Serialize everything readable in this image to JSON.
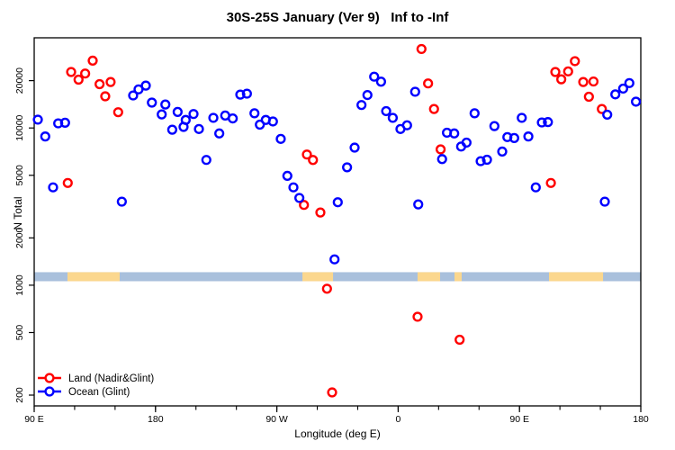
{
  "title": "30S-25S January (Ver 9)   Inf to -Inf",
  "y_axis": {
    "label": "N Total",
    "scale": "log",
    "tick_values": [
      200,
      500,
      1000,
      2000,
      5000,
      10000,
      20000
    ],
    "tick_labels": [
      "200",
      "500",
      "1000",
      "2000",
      "5000",
      "10000",
      "20000"
    ]
  },
  "x_axis": {
    "label": "Longitude (deg E)",
    "range_deg": [
      90,
      540
    ],
    "minor_tick_step_deg": 30,
    "major_ticks": [
      {
        "lon": 90,
        "label": "90 E"
      },
      {
        "lon": 180,
        "label": "180"
      },
      {
        "lon": 270,
        "label": "90 W"
      },
      {
        "lon": 360,
        "label": "0"
      },
      {
        "lon": 450,
        "label": "90 E"
      },
      {
        "lon": 540,
        "label": "180"
      }
    ]
  },
  "legend": {
    "items": [
      {
        "label": "Land (Nadir&Glint)",
        "color": "#ff0000"
      },
      {
        "label": "Ocean (Glint)",
        "color": "#0000ff"
      }
    ]
  },
  "surface_band": {
    "description": "land/ocean strip drawn across the plot near N=1100",
    "ocean_color": "#a9c0dc",
    "land_color": "#fbd78e",
    "n_range": [
      1060,
      1210
    ],
    "land_segments_lon": [
      [
        114.7,
        153.4
      ],
      [
        289.0,
        311.7
      ],
      [
        374.4,
        391.1
      ],
      [
        401.8,
        407.1
      ],
      [
        471.9,
        512.0
      ]
    ]
  },
  "chart_data": {
    "type": "scatter",
    "title": "30S-25S January (Ver 9)   Inf to -Inf",
    "xlabel": "Longitude (deg E)",
    "ylabel": "N Total",
    "xlim": [
      90,
      540
    ],
    "ylim": [
      170,
      37000
    ],
    "yscale": "log",
    "grid": false,
    "legend_position": "bottom-left",
    "marker": "open-circle",
    "series": [
      {
        "name": "Land (Nadir&Glint)",
        "color": "#ff0000",
        "points": [
          [
            117.4,
            22700
          ],
          [
            122.9,
            20300
          ],
          [
            127.8,
            22200
          ],
          [
            133.4,
            26800
          ],
          [
            138.5,
            19000
          ],
          [
            142.7,
            15900
          ],
          [
            146.7,
            19600
          ],
          [
            152.3,
            12600
          ],
          [
            114.9,
            4470
          ],
          [
            290.1,
            3240
          ],
          [
            292.3,
            6780
          ],
          [
            296.8,
            6260
          ],
          [
            302.3,
            2900
          ],
          [
            307.2,
            950
          ],
          [
            311.0,
            208
          ],
          [
            374.4,
            630
          ],
          [
            377.3,
            31800
          ],
          [
            382.2,
            19200
          ],
          [
            386.6,
            13200
          ],
          [
            391.5,
            7310
          ],
          [
            405.6,
            450
          ],
          [
            473.3,
            4470
          ],
          [
            476.6,
            22700
          ],
          [
            481.0,
            20400
          ],
          [
            486.1,
            22900
          ],
          [
            491.1,
            26600
          ],
          [
            497.3,
            19600
          ],
          [
            501.5,
            15800
          ],
          [
            504.9,
            19750
          ],
          [
            511.1,
            13200
          ]
        ]
      },
      {
        "name": "Ocean (Glint)",
        "color": "#0000ff",
        "points": [
          [
            92.7,
            11300
          ],
          [
            98.2,
            8830
          ],
          [
            104.0,
            4190
          ],
          [
            107.8,
            10700
          ],
          [
            112.9,
            10800
          ],
          [
            155.0,
            3400
          ],
          [
            163.4,
            16100
          ],
          [
            167.4,
            17600
          ],
          [
            172.8,
            18600
          ],
          [
            177.3,
            14500
          ],
          [
            184.6,
            12200
          ],
          [
            187.3,
            14100
          ],
          [
            192.4,
            9750
          ],
          [
            196.4,
            12650
          ],
          [
            200.8,
            10160
          ],
          [
            202.4,
            11250
          ],
          [
            208.2,
            12270
          ],
          [
            212.2,
            9850
          ],
          [
            217.7,
            6265
          ],
          [
            222.9,
            11600
          ],
          [
            227.3,
            9230
          ],
          [
            231.7,
            12000
          ],
          [
            237.3,
            11500
          ],
          [
            242.9,
            16300
          ],
          [
            247.8,
            16530
          ],
          [
            253.4,
            12400
          ],
          [
            257.4,
            10500
          ],
          [
            261.8,
            11250
          ],
          [
            267.1,
            11000
          ],
          [
            272.9,
            8520
          ],
          [
            277.8,
            4960
          ],
          [
            282.3,
            4190
          ],
          [
            286.7,
            3590
          ],
          [
            312.8,
            1460
          ],
          [
            315.2,
            3370
          ],
          [
            322.1,
            5620
          ],
          [
            327.7,
            7500
          ],
          [
            332.8,
            14000
          ],
          [
            337.2,
            16200
          ],
          [
            342.2,
            21200
          ],
          [
            347.3,
            19700
          ],
          [
            351.1,
            12800
          ],
          [
            356.0,
            11600
          ],
          [
            361.7,
            9850
          ],
          [
            366.6,
            10400
          ],
          [
            372.6,
            17000
          ],
          [
            374.9,
            3265
          ],
          [
            392.6,
            6340
          ],
          [
            396.2,
            9330
          ],
          [
            401.6,
            9230
          ],
          [
            406.7,
            7620
          ],
          [
            410.7,
            8070
          ],
          [
            416.7,
            12400
          ],
          [
            421.2,
            6150
          ],
          [
            425.9,
            6280
          ],
          [
            431.4,
            10280
          ],
          [
            437.2,
            7080
          ],
          [
            441.0,
            8750
          ],
          [
            446.1,
            8630
          ],
          [
            451.7,
            11600
          ],
          [
            456.6,
            8830
          ],
          [
            462.1,
            4190
          ],
          [
            466.6,
            10840
          ],
          [
            471.1,
            10900
          ],
          [
            513.3,
            3400
          ],
          [
            515.1,
            12150
          ],
          [
            521.1,
            16360
          ],
          [
            526.9,
            17800
          ],
          [
            531.5,
            19300
          ],
          [
            536.4,
            14700
          ]
        ]
      }
    ]
  }
}
